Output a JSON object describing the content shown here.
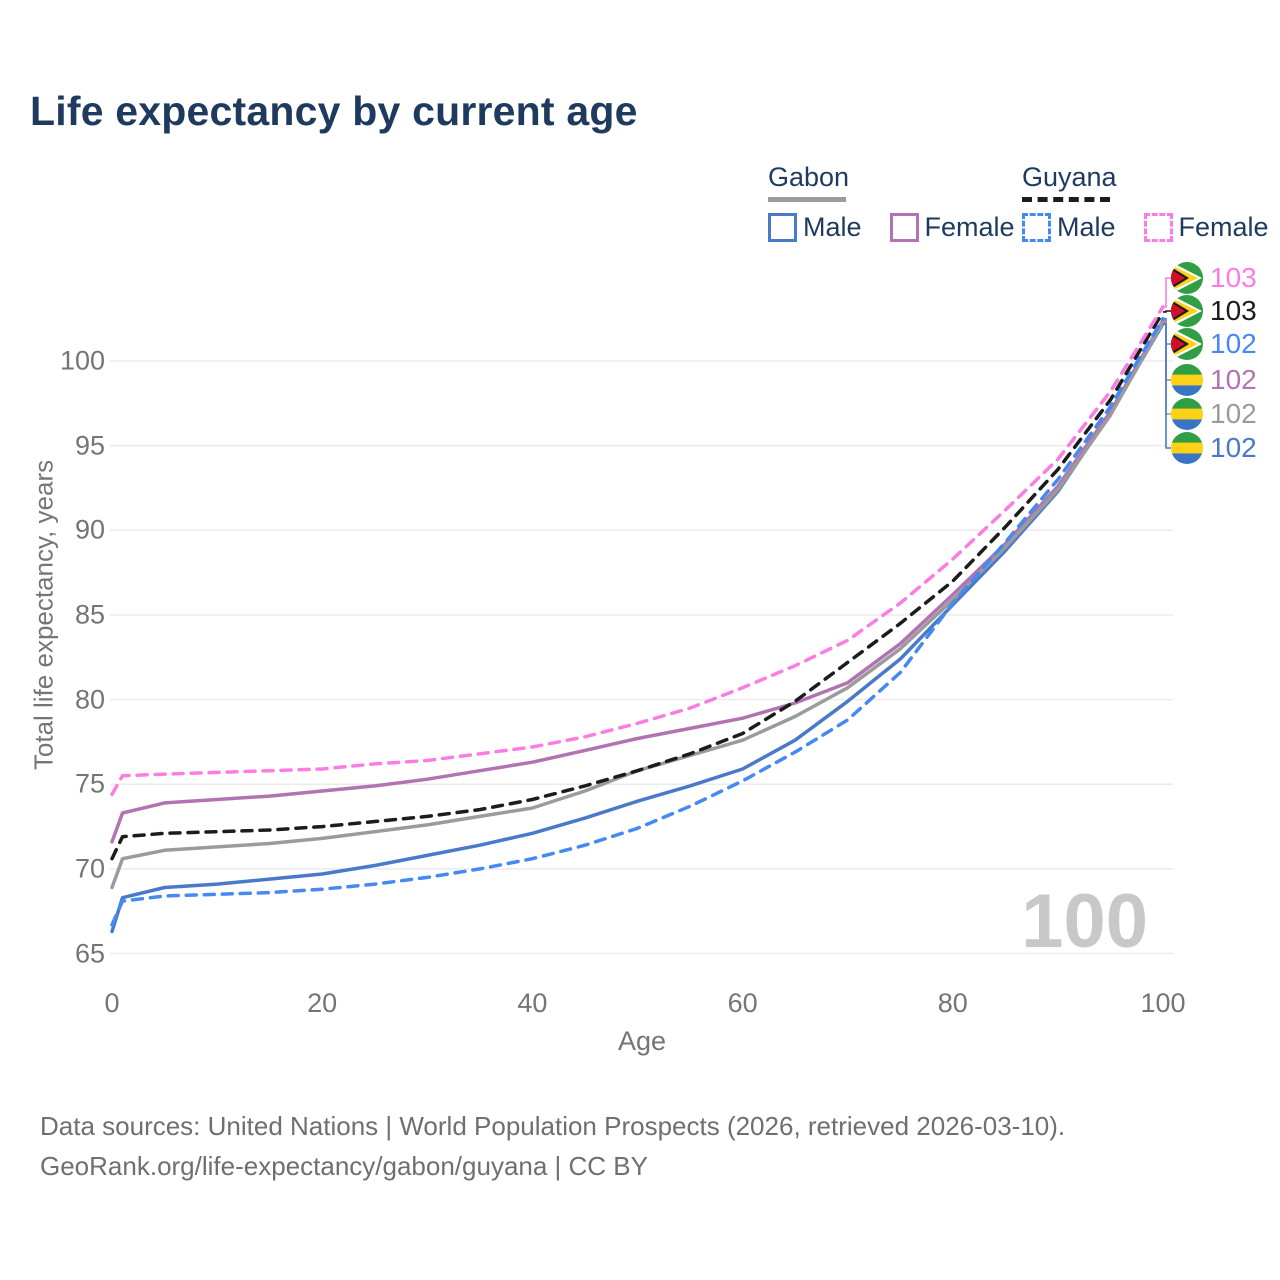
{
  "title": "Life expectancy by current age",
  "watermark_age": "100",
  "legend": {
    "groups": [
      {
        "name": "Gabon",
        "line_style": "solid",
        "line_color": "#9b9b9b",
        "items": [
          {
            "label": "Male",
            "color": "#4a79c9"
          },
          {
            "label": "Female",
            "color": "#b173b1"
          }
        ]
      },
      {
        "name": "Guyana",
        "line_style": "dashed",
        "line_color": "#1c1c1c",
        "items": [
          {
            "label": "Male",
            "color": "#4589f2"
          },
          {
            "label": "Female",
            "color": "#fb7de2"
          }
        ]
      }
    ]
  },
  "chart_data": {
    "type": "line",
    "title": "Life expectancy by current age",
    "xlabel": "Age",
    "ylabel": "Total life expectancy, years",
    "x_ticks": [
      0,
      20,
      40,
      60,
      80,
      100
    ],
    "y_ticks": [
      65,
      70,
      75,
      80,
      85,
      90,
      95,
      100
    ],
    "xlim": [
      0,
      100
    ],
    "ylim": [
      64,
      104
    ],
    "grid": "horizontal",
    "legend_position": "top-right",
    "x": [
      0,
      1,
      5,
      10,
      15,
      20,
      25,
      30,
      35,
      40,
      45,
      50,
      55,
      60,
      65,
      70,
      75,
      80,
      85,
      90,
      95,
      100
    ],
    "series": [
      {
        "name": "Gabon Male",
        "country": "Gabon",
        "sex": "Male",
        "color": "#4a79c9",
        "style": "solid",
        "values": [
          66.3,
          68.3,
          68.9,
          69.1,
          69.4,
          69.7,
          70.2,
          70.8,
          71.4,
          72.1,
          73.0,
          74.0,
          74.9,
          75.9,
          77.6,
          79.9,
          82.4,
          85.6,
          88.8,
          92.3,
          96.9,
          102.2
        ]
      },
      {
        "name": "Gabon Female",
        "country": "Gabon",
        "sex": "Female",
        "color": "#b173b1",
        "style": "solid",
        "values": [
          71.6,
          73.3,
          73.9,
          74.1,
          74.3,
          74.6,
          74.9,
          75.3,
          75.8,
          76.3,
          77.0,
          77.7,
          78.3,
          78.9,
          79.8,
          81.0,
          83.3,
          86.2,
          89.2,
          92.6,
          97.0,
          102.4
        ]
      },
      {
        "name": "Gabon",
        "country": "Gabon",
        "sex": "Both",
        "color": "#9b9b9b",
        "style": "solid",
        "values": [
          68.9,
          70.6,
          71.1,
          71.3,
          71.5,
          71.8,
          72.2,
          72.6,
          73.1,
          73.6,
          74.6,
          75.8,
          76.7,
          77.6,
          79.0,
          80.7,
          83.0,
          85.9,
          89.0,
          92.4,
          96.8,
          102.3
        ]
      },
      {
        "name": "Guyana Male",
        "country": "Guyana",
        "sex": "Male",
        "color": "#4589f2",
        "style": "dashed",
        "values": [
          66.7,
          68.1,
          68.4,
          68.5,
          68.6,
          68.8,
          69.1,
          69.5,
          70.0,
          70.6,
          71.4,
          72.4,
          73.7,
          75.2,
          76.9,
          78.8,
          81.6,
          85.7,
          89.3,
          93.0,
          97.3,
          102.5
        ]
      },
      {
        "name": "Guyana",
        "country": "Guyana",
        "sex": "Both",
        "color": "#1c1c1c",
        "style": "dashed",
        "values": [
          70.6,
          71.9,
          72.1,
          72.2,
          72.3,
          72.5,
          72.8,
          73.1,
          73.5,
          74.1,
          74.9,
          75.8,
          76.8,
          78.0,
          79.9,
          82.2,
          84.5,
          87.0,
          90.2,
          93.6,
          97.7,
          102.9
        ]
      },
      {
        "name": "Guyana Female",
        "country": "Guyana",
        "sex": "Female",
        "color": "#fb7de2",
        "style": "dashed",
        "values": [
          74.4,
          75.5,
          75.6,
          75.7,
          75.8,
          75.9,
          76.2,
          76.4,
          76.8,
          77.2,
          77.8,
          78.6,
          79.5,
          80.7,
          82.0,
          83.5,
          85.7,
          88.3,
          91.2,
          94.2,
          98.2,
          103.2
        ]
      }
    ],
    "end_labels": [
      {
        "value": "103",
        "color": "#fb7de2",
        "flag": "guyana",
        "series": "Guyana Female"
      },
      {
        "value": "103",
        "color": "#1c1c1c",
        "flag": "guyana",
        "series": "Guyana"
      },
      {
        "value": "102",
        "color": "#4589f2",
        "flag": "guyana",
        "series": "Guyana Male"
      },
      {
        "value": "102",
        "color": "#b173b1",
        "flag": "gabon",
        "series": "Gabon Female"
      },
      {
        "value": "102",
        "color": "#9b9b9b",
        "flag": "gabon",
        "series": "Gabon"
      },
      {
        "value": "102",
        "color": "#4a79c9",
        "flag": "gabon",
        "series": "Gabon Male"
      }
    ]
  },
  "footer": {
    "line1": "Data sources: United Nations | World Population Prospects (2026, retrieved 2026-03-10).",
    "line2": "GeoRank.org/life-expectancy/gabon/guyana | CC BY"
  }
}
